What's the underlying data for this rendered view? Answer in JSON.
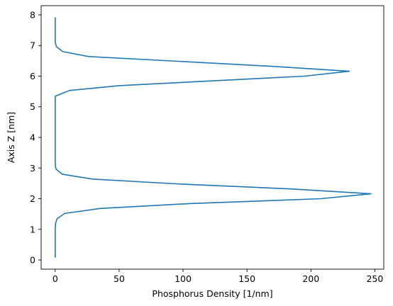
{
  "chart_data": {
    "type": "line",
    "title": "",
    "xlabel": "Phosphorus Density [1/nm]",
    "ylabel": "Axis Z [nm]",
    "xlim": [
      -11,
      257
    ],
    "ylim": [
      -0.3,
      8.3
    ],
    "xticks": [
      0,
      50,
      100,
      150,
      200,
      250
    ],
    "yticks": [
      0,
      1,
      2,
      3,
      4,
      5,
      6,
      7,
      8
    ],
    "grid": false,
    "line_color": "#1f77b4",
    "series": [
      {
        "x": [
          0,
          0,
          0,
          0.3,
          1.5,
          7.5,
          35,
          105,
          208,
          247,
          184,
          97,
          29,
          5.5,
          0.8,
          0.1,
          0,
          0,
          0,
          0,
          0,
          0,
          0.1,
          1.5,
          11,
          50,
          195,
          230,
          170,
          26,
          6,
          1,
          0,
          0,
          0
        ],
        "y": [
          0.08,
          0.5,
          1.0,
          1.2,
          1.35,
          1.52,
          1.68,
          1.84,
          2.0,
          2.16,
          2.32,
          2.48,
          2.64,
          2.8,
          2.96,
          3.05,
          3.3,
          3.8,
          4.3,
          4.8,
          5.0,
          5.2,
          5.35,
          5.37,
          5.53,
          5.69,
          6.0,
          6.16,
          6.32,
          6.64,
          6.8,
          6.96,
          7.1,
          7.5,
          7.92
        ]
      }
    ]
  }
}
